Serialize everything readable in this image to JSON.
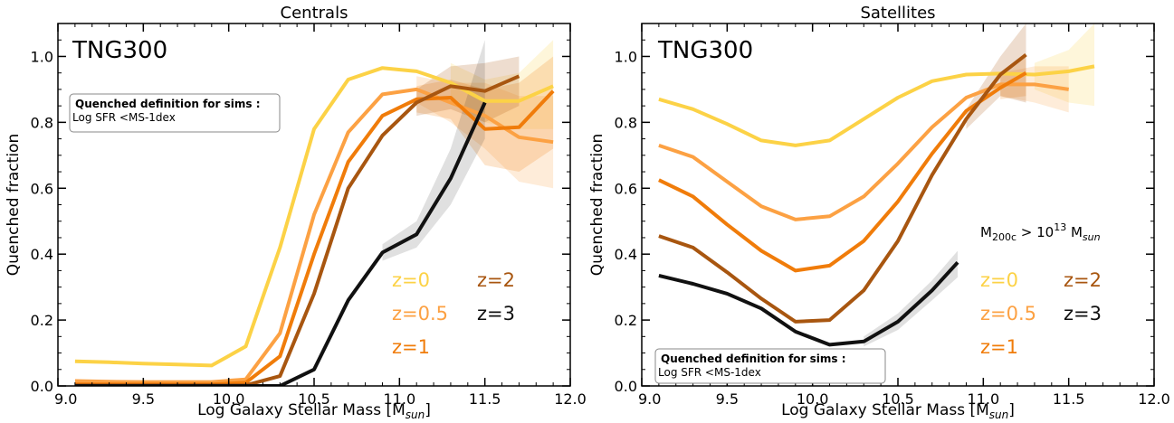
{
  "chart_data": [
    {
      "type": "line",
      "title": "Centrals",
      "xlabel": "Log Galaxy Stellar Mass [M",
      "xlabel_sub": "sun",
      "xlabel_close": "]",
      "ylabel": "Quenched fraction",
      "xlim": [
        9.0,
        12.0
      ],
      "ylim": [
        0.0,
        1.1
      ],
      "xticks": [
        "9.0",
        "9.5",
        "10.0",
        "10.5",
        "11.0",
        "11.5",
        "12.0"
      ],
      "yticks": [
        "0.0",
        "0.2",
        "0.4",
        "0.6",
        "0.8",
        "1.0"
      ],
      "sim_label": "TNG300",
      "box": {
        "title": "Quenched definition for sims :",
        "text": "Log SFR <MS-1dex",
        "position": "upper-left"
      },
      "legend": {
        "position": "lower-right",
        "entries": [
          {
            "label": "z=0",
            "color": "#fcd246"
          },
          {
            "label": "z=0.5",
            "color": "#fca143"
          },
          {
            "label": "z=1",
            "color": "#f07c0a"
          },
          {
            "label": "z=2",
            "color": "#a85610"
          },
          {
            "label": "z=3",
            "color": "#111111"
          }
        ]
      },
      "series": [
        {
          "name": "z=0",
          "color": "#fcd246",
          "x": [
            9.1,
            9.3,
            9.5,
            9.7,
            9.9,
            10.1,
            10.3,
            10.5,
            10.7,
            10.9,
            11.1,
            11.3,
            11.5,
            11.7,
            11.9
          ],
          "y": [
            0.075,
            0.072,
            0.068,
            0.065,
            0.062,
            0.12,
            0.42,
            0.78,
            0.93,
            0.965,
            0.955,
            0.92,
            0.865,
            0.865,
            0.91
          ],
          "band_x": [
            11.3,
            11.5,
            11.7,
            11.9
          ],
          "band_lo": [
            0.86,
            0.8,
            0.78,
            0.78
          ],
          "band_hi": [
            0.98,
            0.93,
            0.95,
            1.05
          ]
        },
        {
          "name": "z=0.5",
          "color": "#fca143",
          "x": [
            9.1,
            9.3,
            9.5,
            9.7,
            9.9,
            10.1,
            10.3,
            10.5,
            10.7,
            10.9,
            11.1,
            11.3,
            11.5,
            11.7,
            11.9
          ],
          "y": [
            0.015,
            0.013,
            0.012,
            0.012,
            0.012,
            0.02,
            0.16,
            0.52,
            0.77,
            0.885,
            0.9,
            0.86,
            0.82,
            0.755,
            0.74
          ],
          "band_x": [
            11.1,
            11.3,
            11.5,
            11.7,
            11.9
          ],
          "band_lo": [
            0.86,
            0.8,
            0.72,
            0.62,
            0.6
          ],
          "band_hi": [
            0.94,
            0.92,
            0.92,
            0.88,
            0.88
          ]
        },
        {
          "name": "z=1",
          "color": "#f07c0a",
          "x": [
            9.1,
            9.3,
            9.5,
            9.7,
            9.9,
            10.1,
            10.3,
            10.5,
            10.7,
            10.9,
            11.1,
            11.3,
            11.5,
            11.7,
            11.9
          ],
          "y": [
            0.005,
            0.005,
            0.005,
            0.005,
            0.005,
            0.01,
            0.09,
            0.4,
            0.68,
            0.82,
            0.87,
            0.875,
            0.78,
            0.785,
            0.895
          ],
          "band_x": [
            11.1,
            11.3,
            11.5,
            11.7,
            11.9
          ],
          "band_lo": [
            0.83,
            0.81,
            0.67,
            0.65,
            0.72
          ],
          "band_hi": [
            0.91,
            0.93,
            0.9,
            0.92,
            1.0
          ]
        },
        {
          "name": "z=2",
          "color": "#a85610",
          "x": [
            9.1,
            9.3,
            9.5,
            9.7,
            9.9,
            10.1,
            10.3,
            10.5,
            10.7,
            10.9,
            11.1,
            11.3,
            11.5,
            11.7
          ],
          "y": [
            0.002,
            0.002,
            0.002,
            0.002,
            0.002,
            0.002,
            0.03,
            0.28,
            0.6,
            0.76,
            0.86,
            0.91,
            0.895,
            0.94
          ],
          "band_x": [
            11.1,
            11.3,
            11.5,
            11.7
          ],
          "band_lo": [
            0.82,
            0.84,
            0.8,
            0.85
          ],
          "band_hi": [
            0.9,
            0.97,
            0.98,
            1.0
          ]
        },
        {
          "name": "z=3",
          "color": "#111111",
          "x": [
            9.1,
            9.3,
            9.5,
            9.7,
            9.9,
            10.1,
            10.3,
            10.5,
            10.7,
            10.9,
            11.1,
            11.3,
            11.5
          ],
          "y": [
            0.0,
            0.0,
            0.0,
            0.0,
            0.0,
            0.0,
            0.0,
            0.05,
            0.26,
            0.405,
            0.46,
            0.63,
            0.86
          ],
          "band_x": [
            10.9,
            11.1,
            11.3,
            11.5
          ],
          "band_lo": [
            0.38,
            0.42,
            0.55,
            0.75
          ],
          "band_hi": [
            0.43,
            0.5,
            0.72,
            1.05
          ]
        }
      ]
    },
    {
      "type": "line",
      "title": "Satellites",
      "xlabel": "Log Galaxy Stellar Mass [M",
      "xlabel_sub": "sun",
      "xlabel_close": "]",
      "ylabel": "Quenched fraction",
      "xlim": [
        9.0,
        12.0
      ],
      "ylim": [
        0.0,
        1.1
      ],
      "xticks": [
        "9.0",
        "9.5",
        "10.0",
        "10.5",
        "11.0",
        "11.5",
        "12.0"
      ],
      "yticks": [
        "0.0",
        "0.2",
        "0.4",
        "0.6",
        "0.8",
        "1.0"
      ],
      "sim_label": "TNG300",
      "mass_cut": {
        "pre": "M",
        "sub1": "200c",
        "mid": " > 10",
        "sup": "13",
        "post": " M",
        "sub2": "sun"
      },
      "box": {
        "title": "Quenched definition for sims :",
        "text": "Log SFR <MS-1dex",
        "position": "lower-left"
      },
      "legend": {
        "position": "center-right",
        "entries": [
          {
            "label": "z=0",
            "color": "#fcd246"
          },
          {
            "label": "z=0.5",
            "color": "#fca143"
          },
          {
            "label": "z=1",
            "color": "#f07c0a"
          },
          {
            "label": "z=2",
            "color": "#a85610"
          },
          {
            "label": "z=3",
            "color": "#111111"
          }
        ]
      },
      "series": [
        {
          "name": "z=0",
          "color": "#fcd246",
          "x": [
            9.1,
            9.3,
            9.5,
            9.7,
            9.9,
            10.1,
            10.3,
            10.5,
            10.7,
            10.9,
            11.1,
            11.3,
            11.5,
            11.65
          ],
          "y": [
            0.87,
            0.84,
            0.795,
            0.745,
            0.73,
            0.745,
            0.81,
            0.875,
            0.925,
            0.945,
            0.948,
            0.945,
            0.955,
            0.97
          ],
          "band_x": [
            11.3,
            11.5,
            11.65
          ],
          "band_lo": [
            0.9,
            0.86,
            0.85
          ],
          "band_hi": [
            0.98,
            1.02,
            1.1
          ]
        },
        {
          "name": "z=0.5",
          "color": "#fca143",
          "x": [
            9.1,
            9.3,
            9.5,
            9.7,
            9.9,
            10.1,
            10.3,
            10.5,
            10.7,
            10.9,
            11.1,
            11.3,
            11.5
          ],
          "y": [
            0.73,
            0.695,
            0.62,
            0.545,
            0.505,
            0.515,
            0.575,
            0.675,
            0.785,
            0.875,
            0.915,
            0.915,
            0.9
          ],
          "band_x": [
            11.1,
            11.3,
            11.5
          ],
          "band_lo": [
            0.88,
            0.86,
            0.83
          ],
          "band_hi": [
            0.95,
            0.97,
            0.97
          ]
        },
        {
          "name": "z=1",
          "color": "#f07c0a",
          "x": [
            9.1,
            9.3,
            9.5,
            9.7,
            9.9,
            10.1,
            10.3,
            10.5,
            10.7,
            10.9,
            11.1,
            11.25
          ],
          "y": [
            0.625,
            0.575,
            0.49,
            0.41,
            0.35,
            0.365,
            0.44,
            0.56,
            0.705,
            0.835,
            0.905,
            0.95
          ],
          "band_x": [
            11.1,
            11.25
          ],
          "band_lo": [
            0.87,
            0.88
          ],
          "band_hi": [
            0.94,
            1.0
          ]
        },
        {
          "name": "z=2",
          "color": "#a85610",
          "x": [
            9.1,
            9.3,
            9.5,
            9.7,
            9.9,
            10.1,
            10.3,
            10.5,
            10.7,
            10.9,
            11.1,
            11.25
          ],
          "y": [
            0.455,
            0.42,
            0.345,
            0.265,
            0.195,
            0.2,
            0.29,
            0.44,
            0.64,
            0.81,
            0.945,
            1.005
          ],
          "band_x": [
            10.9,
            11.1,
            11.25
          ],
          "band_lo": [
            0.78,
            0.88,
            0.86
          ],
          "band_hi": [
            0.84,
            1.0,
            1.1
          ]
        },
        {
          "name": "z=3",
          "color": "#111111",
          "x": [
            9.1,
            9.3,
            9.5,
            9.7,
            9.9,
            10.1,
            10.3,
            10.5,
            10.7,
            10.85
          ],
          "y": [
            0.335,
            0.31,
            0.28,
            0.235,
            0.165,
            0.125,
            0.135,
            0.195,
            0.29,
            0.375
          ],
          "band_x": [
            10.3,
            10.5,
            10.7,
            10.85
          ],
          "band_lo": [
            0.12,
            0.17,
            0.26,
            0.33
          ],
          "band_hi": [
            0.15,
            0.22,
            0.32,
            0.41
          ]
        }
      ]
    }
  ]
}
